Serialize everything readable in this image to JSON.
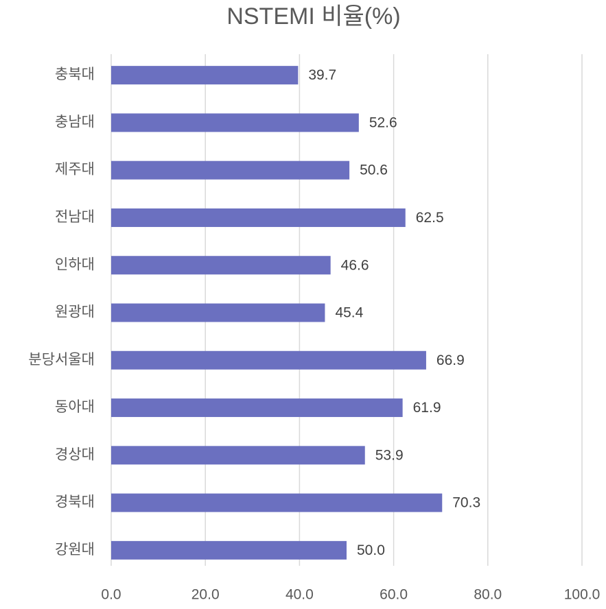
{
  "chart_data": {
    "type": "bar",
    "orientation": "horizontal",
    "title": "NSTEMI 비율(%)",
    "categories": [
      "충북대",
      "충남대",
      "제주대",
      "전남대",
      "인하대",
      "원광대",
      "분당서울대",
      "동아대",
      "경상대",
      "경북대",
      "강원대"
    ],
    "values": [
      39.7,
      52.6,
      50.6,
      62.5,
      46.6,
      45.4,
      66.9,
      61.9,
      53.9,
      70.3,
      50
    ],
    "value_labels": [
      "39.7",
      "52.6",
      "50.6",
      "62.5",
      "46.6",
      "45.4",
      "66.9",
      "61.9",
      "53.9",
      "70.3",
      "50.0"
    ],
    "color": "#6b70c0",
    "xlim": [
      0,
      100
    ],
    "xticks": [
      {
        "value": 0,
        "label": "0.0"
      },
      {
        "value": 20,
        "label": "20.0"
      },
      {
        "value": 40,
        "label": "40.0"
      },
      {
        "value": 60,
        "label": "60.0"
      },
      {
        "value": 80,
        "label": "80.0"
      },
      {
        "value": 100,
        "label": "100.0"
      }
    ],
    "grid": true
  }
}
